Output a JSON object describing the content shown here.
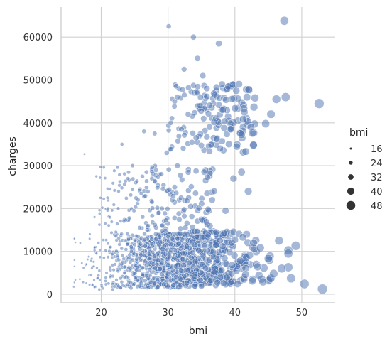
{
  "chart_data": {
    "type": "scatter",
    "title": "",
    "xlabel": "bmi",
    "ylabel": "charges",
    "xlim": [
      14,
      55
    ],
    "ylim": [
      -2000,
      67000
    ],
    "xticks": [
      20,
      30,
      40,
      50
    ],
    "yticks": [
      0,
      10000,
      20000,
      30000,
      40000,
      50000,
      60000
    ],
    "grid": true,
    "legend": {
      "title": "bmi",
      "placement": "right",
      "sizes": [
        16,
        24,
        32,
        40,
        48
      ]
    },
    "point_color": "#4c72b0",
    "size_encoding": "bmi",
    "points_note_free": true,
    "sample_points": [
      [
        15.9,
        1700
      ],
      [
        16.8,
        3500
      ],
      [
        17.3,
        2800
      ],
      [
        17.5,
        32700
      ],
      [
        17.8,
        7000
      ],
      [
        18.3,
        14000
      ],
      [
        18.5,
        4500
      ],
      [
        18.7,
        2100
      ],
      [
        18.9,
        6500
      ],
      [
        19.0,
        18000
      ],
      [
        19.3,
        9500
      ],
      [
        19.6,
        12000
      ],
      [
        19.8,
        3300
      ],
      [
        19.9,
        22500
      ],
      [
        20.1,
        1800
      ],
      [
        20.4,
        8500
      ],
      [
        20.6,
        16500
      ],
      [
        20.8,
        5000
      ],
      [
        21.0,
        20000
      ],
      [
        21.1,
        2500
      ],
      [
        21.4,
        11000
      ],
      [
        21.7,
        6800
      ],
      [
        22.0,
        1800
      ],
      [
        22.2,
        14500
      ],
      [
        22.4,
        9000
      ],
      [
        22.6,
        24000
      ],
      [
        22.9,
        3700
      ],
      [
        23.1,
        35000
      ],
      [
        23.2,
        7500
      ],
      [
        23.4,
        17000
      ],
      [
        23.6,
        12500
      ],
      [
        23.9,
        2200
      ],
      [
        24.0,
        27000
      ],
      [
        24.3,
        5500
      ],
      [
        24.5,
        10000
      ],
      [
        24.7,
        30000
      ],
      [
        24.9,
        19500
      ],
      [
        25.1,
        3800
      ],
      [
        25.3,
        8200
      ],
      [
        25.5,
        13500
      ],
      [
        25.8,
        1900
      ],
      [
        26.0,
        23500
      ],
      [
        26.2,
        6200
      ],
      [
        26.4,
        38000
      ],
      [
        26.6,
        11200
      ],
      [
        26.8,
        4300
      ],
      [
        27.0,
        16000
      ],
      [
        27.2,
        9300
      ],
      [
        27.4,
        2800
      ],
      [
        27.6,
        21500
      ],
      [
        27.8,
        7000
      ],
      [
        28.0,
        37500
      ],
      [
        28.2,
        12800
      ],
      [
        28.4,
        3400
      ],
      [
        28.6,
        19000
      ],
      [
        28.8,
        5900
      ],
      [
        29.0,
        28000
      ],
      [
        29.2,
        10500
      ],
      [
        29.4,
        2300
      ],
      [
        29.6,
        14800
      ],
      [
        29.8,
        33000
      ],
      [
        30.0,
        4700
      ],
      [
        30.1,
        62500
      ],
      [
        30.2,
        8800
      ],
      [
        30.4,
        40000
      ],
      [
        30.6,
        13000
      ],
      [
        30.8,
        2100
      ],
      [
        31.0,
        25000
      ],
      [
        31.2,
        6500
      ],
      [
        31.4,
        46000
      ],
      [
        31.6,
        11800
      ],
      [
        31.8,
        3600
      ],
      [
        32.0,
        38500
      ],
      [
        32.2,
        9600
      ],
      [
        32.4,
        52500
      ],
      [
        32.6,
        15500
      ],
      [
        32.8,
        2600
      ],
      [
        33.0,
        42000
      ],
      [
        33.2,
        7300
      ],
      [
        33.4,
        20500
      ],
      [
        33.6,
        12300
      ],
      [
        33.8,
        60000
      ],
      [
        34.0,
        4100
      ],
      [
        34.2,
        36500
      ],
      [
        34.4,
        55000
      ],
      [
        34.6,
        10200
      ],
      [
        34.8,
        44000
      ],
      [
        35.0,
        1900
      ],
      [
        35.2,
        51000
      ],
      [
        35.4,
        28500
      ],
      [
        35.6,
        6100
      ],
      [
        35.8,
        48000
      ],
      [
        36.0,
        13800
      ],
      [
        36.2,
        39000
      ],
      [
        36.4,
        3200
      ],
      [
        36.6,
        22000
      ],
      [
        36.8,
        8700
      ],
      [
        37.0,
        46500
      ],
      [
        37.2,
        11500
      ],
      [
        37.4,
        2700
      ],
      [
        37.6,
        58500
      ],
      [
        37.8,
        34000
      ],
      [
        38.0,
        5600
      ],
      [
        38.2,
        43000
      ],
      [
        38.4,
        14200
      ],
      [
        38.6,
        19500
      ],
      [
        38.8,
        3900
      ],
      [
        39.0,
        48500
      ],
      [
        39.2,
        9800
      ],
      [
        39.4,
        38500
      ],
      [
        39.6,
        6800
      ],
      [
        39.8,
        27000
      ],
      [
        40.0,
        12700
      ],
      [
        40.2,
        47500
      ],
      [
        40.4,
        2400
      ],
      [
        40.6,
        49000
      ],
      [
        40.8,
        7800
      ],
      [
        41.0,
        28500
      ],
      [
        41.2,
        13300
      ],
      [
        41.4,
        42500
      ],
      [
        41.6,
        4600
      ],
      [
        41.8,
        46000
      ],
      [
        42.0,
        24000
      ],
      [
        42.2,
        9100
      ],
      [
        42.4,
        39000
      ],
      [
        42.6,
        3100
      ],
      [
        42.8,
        12000
      ],
      [
        43.0,
        45800
      ],
      [
        43.4,
        6400
      ],
      [
        43.8,
        10800
      ],
      [
        44.2,
        2900
      ],
      [
        44.6,
        39800
      ],
      [
        45.0,
        8300
      ],
      [
        45.4,
        42000
      ],
      [
        45.8,
        4800
      ],
      [
        46.2,
        45500
      ],
      [
        46.6,
        12500
      ],
      [
        47.0,
        6000
      ],
      [
        47.4,
        63800
      ],
      [
        47.6,
        46000
      ],
      [
        48.0,
        9500
      ],
      [
        48.4,
        3700
      ],
      [
        49.1,
        11300
      ],
      [
        50.4,
        2400
      ],
      [
        52.6,
        44500
      ],
      [
        53.1,
        1200
      ]
    ]
  }
}
